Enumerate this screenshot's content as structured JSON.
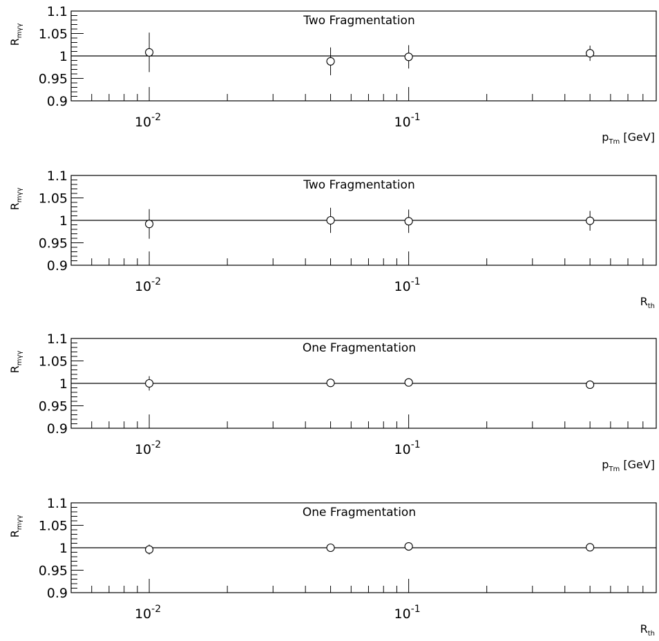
{
  "chart_data": [
    {
      "type": "scatter",
      "title": "Two Fragmentation",
      "ylabel": {
        "main": "R",
        "sub": "mγγ"
      },
      "xlabel": {
        "main": "p",
        "sub": "Tm",
        "rest": "[GeV]"
      },
      "x_scale": "log",
      "xlim": [
        0.005,
        0.9
      ],
      "ylim": [
        0.9,
        1.1
      ],
      "yticks": [
        "0.9",
        "0.95",
        "1",
        "1.05",
        "1.1"
      ],
      "xticks": [
        {
          "base": "10",
          "exp": "-2"
        },
        {
          "base": "10",
          "exp": "-1"
        }
      ],
      "reference_line": 1,
      "points": [
        {
          "x": 0.01,
          "y": 1.008,
          "yerr": 0.044
        },
        {
          "x": 0.05,
          "y": 0.988,
          "yerr": 0.031
        },
        {
          "x": 0.1,
          "y": 0.998,
          "yerr": 0.026
        },
        {
          "x": 0.5,
          "y": 1.006,
          "yerr": 0.017
        }
      ]
    },
    {
      "type": "scatter",
      "title": "Two Fragmentation",
      "ylabel": {
        "main": "R",
        "sub": "mγγ"
      },
      "xlabel": {
        "main": "R",
        "sub": "th",
        "rest": ""
      },
      "x_scale": "log",
      "xlim": [
        0.005,
        0.9
      ],
      "ylim": [
        0.9,
        1.1
      ],
      "yticks": [
        "0.9",
        "0.95",
        "1",
        "1.05",
        "1.1"
      ],
      "xticks": [
        {
          "base": "10",
          "exp": "-2"
        },
        {
          "base": "10",
          "exp": "-1"
        }
      ],
      "reference_line": 1,
      "points": [
        {
          "x": 0.01,
          "y": 0.992,
          "yerr": 0.033
        },
        {
          "x": 0.05,
          "y": 1.0,
          "yerr": 0.028
        },
        {
          "x": 0.1,
          "y": 0.998,
          "yerr": 0.026
        },
        {
          "x": 0.5,
          "y": 0.999,
          "yerr": 0.022
        }
      ]
    },
    {
      "type": "scatter",
      "title": "One Fragmentation",
      "ylabel": {
        "main": "R",
        "sub": "mγγ"
      },
      "xlabel": {
        "main": "p",
        "sub": "Tm",
        "rest": "[GeV]"
      },
      "x_scale": "log",
      "xlim": [
        0.005,
        0.9
      ],
      "ylim": [
        0.9,
        1.1
      ],
      "yticks": [
        "0.9",
        "0.95",
        "1",
        "1.05",
        "1.1"
      ],
      "xticks": [
        {
          "base": "10",
          "exp": "-2"
        },
        {
          "base": "10",
          "exp": "-1"
        }
      ],
      "reference_line": 1,
      "points": [
        {
          "x": 0.01,
          "y": 1.0,
          "yerr": 0.016
        },
        {
          "x": 0.05,
          "y": 1.001,
          "yerr": 0.009
        },
        {
          "x": 0.1,
          "y": 1.002,
          "yerr": 0.007
        },
        {
          "x": 0.5,
          "y": 0.997,
          "yerr": 0.005
        }
      ]
    },
    {
      "type": "scatter",
      "title": "One Fragmentation",
      "ylabel": {
        "main": "R",
        "sub": "mγγ"
      },
      "xlabel": {
        "main": "R",
        "sub": "th",
        "rest": ""
      },
      "x_scale": "log",
      "xlim": [
        0.005,
        0.9
      ],
      "ylim": [
        0.9,
        1.1
      ],
      "yticks": [
        "0.9",
        "0.95",
        "1",
        "1.05",
        "1.1"
      ],
      "xticks": [
        {
          "base": "10",
          "exp": "-2"
        },
        {
          "base": "10",
          "exp": "-1"
        }
      ],
      "reference_line": 1,
      "points": [
        {
          "x": 0.01,
          "y": 0.996,
          "yerr": 0.011
        },
        {
          "x": 0.05,
          "y": 1.0,
          "yerr": 0.007
        },
        {
          "x": 0.1,
          "y": 1.003,
          "yerr": 0.007
        },
        {
          "x": 0.5,
          "y": 1.001,
          "yerr": 0.005
        }
      ]
    }
  ]
}
